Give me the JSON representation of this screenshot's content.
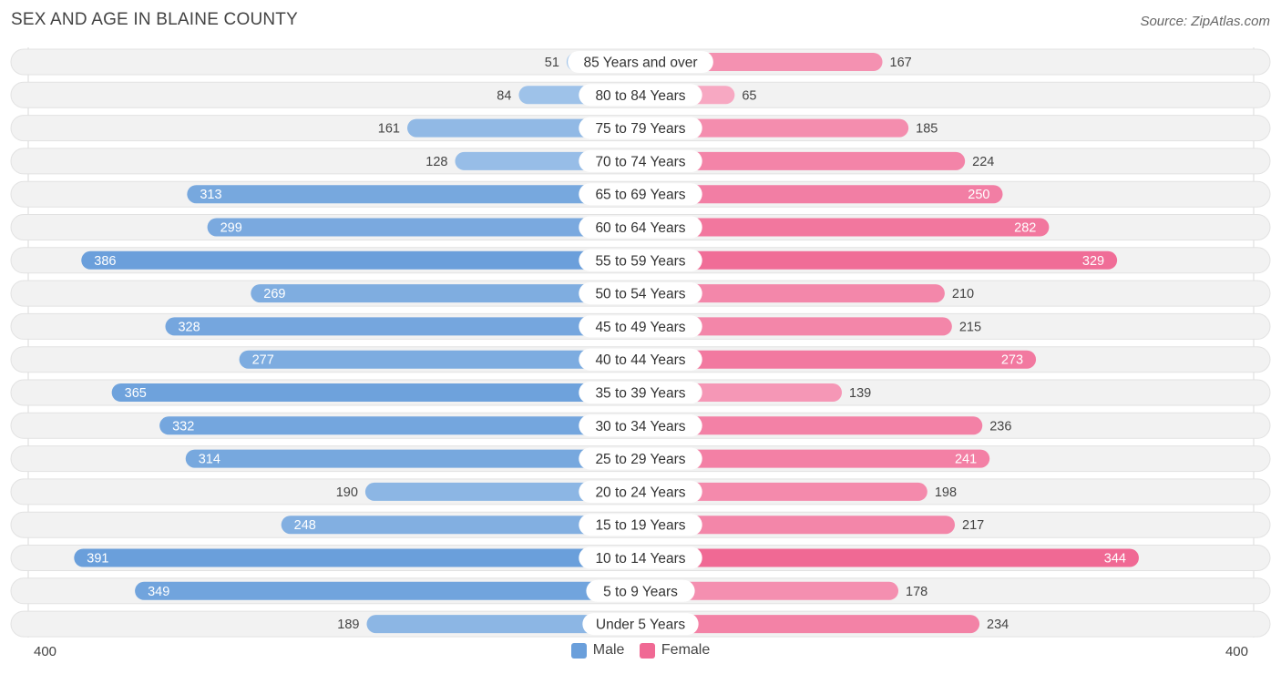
{
  "title": "SEX AND AGE IN BLAINE COUNTY",
  "source": "Source: ZipAtlas.com",
  "axis": {
    "left_label": "400",
    "right_label": "400"
  },
  "legend": {
    "male": "Male",
    "female": "Female"
  },
  "colors": {
    "male_light": "#a4c6ea",
    "male_dark": "#6a9fdb",
    "female_light": "#f7a9c3",
    "female_dark": "#f06994",
    "row_bg": "#f2f2f2",
    "row_border": "#e2e2e2"
  },
  "chart_data": {
    "type": "bar",
    "orientation": "horizontal-diverging",
    "title": "SEX AND AGE IN BLAINE COUNTY",
    "xlim": [
      -400,
      400
    ],
    "categories": [
      "85 Years and over",
      "80 to 84 Years",
      "75 to 79 Years",
      "70 to 74 Years",
      "65 to 69 Years",
      "60 to 64 Years",
      "55 to 59 Years",
      "50 to 54 Years",
      "45 to 49 Years",
      "40 to 44 Years",
      "35 to 39 Years",
      "30 to 34 Years",
      "25 to 29 Years",
      "20 to 24 Years",
      "15 to 19 Years",
      "10 to 14 Years",
      "5 to 9 Years",
      "Under 5 Years"
    ],
    "series": [
      {
        "name": "Male",
        "values": [
          51,
          84,
          161,
          128,
          313,
          299,
          386,
          269,
          328,
          277,
          365,
          332,
          314,
          190,
          248,
          391,
          349,
          189
        ]
      },
      {
        "name": "Female",
        "values": [
          167,
          65,
          185,
          224,
          250,
          282,
          329,
          210,
          215,
          273,
          139,
          236,
          241,
          198,
          217,
          344,
          178,
          234
        ]
      }
    ],
    "legend_position": "bottom-center"
  }
}
